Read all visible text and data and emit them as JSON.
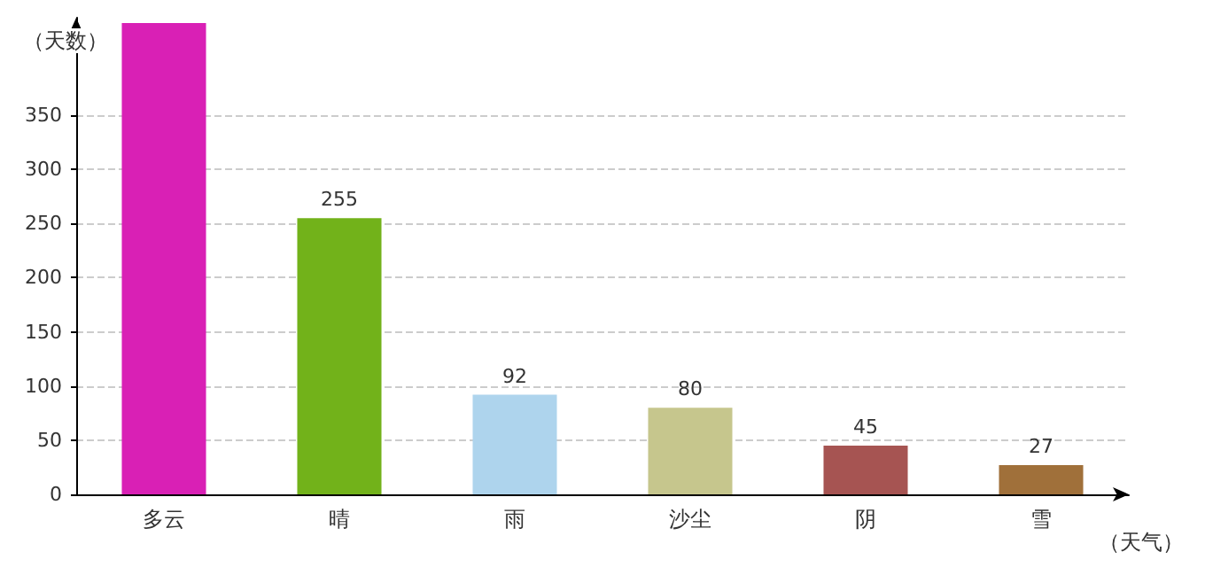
{
  "chart_data": {
    "type": "bar",
    "xlabel": "（天气）",
    "ylabel": "（天数）",
    "categories": [
      "多云",
      "晴",
      "雨",
      "沙尘",
      "阴",
      "雪"
    ],
    "values": [
      435,
      255,
      92,
      80,
      45,
      27
    ],
    "value_labels": [
      null,
      "255",
      "92",
      "80",
      "45",
      "27"
    ],
    "colors": [
      "#d920b5",
      "#72b21a",
      "#aed4ed",
      "#c6c68d",
      "#a65452",
      "#a0703a"
    ],
    "ylim": [
      0,
      440
    ],
    "yticks": [
      0,
      50,
      100,
      150,
      200,
      250,
      300,
      350
    ],
    "grid": "y"
  }
}
